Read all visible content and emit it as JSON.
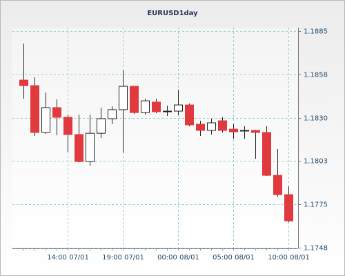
{
  "chart_data": {
    "type": "candlestick",
    "title": "EURUSD1day",
    "categories": [
      null,
      null,
      null,
      null,
      "14:00 07/01",
      null,
      null,
      null,
      null,
      "19:00 07/01",
      null,
      null,
      null,
      null,
      "00:00 08/01",
      null,
      null,
      null,
      null,
      "05:00 08/01",
      null,
      null,
      null,
      null,
      "10:00 08/01"
    ],
    "open": [
      1.1854,
      1.18505,
      1.18209,
      1.18366,
      1.18305,
      1.18196,
      1.18025,
      1.18204,
      1.18296,
      1.18353,
      1.18501,
      1.18335,
      1.18401,
      1.1834,
      1.18344,
      1.18383,
      1.18261,
      1.18222,
      1.18283,
      1.1823,
      1.18222,
      1.18222,
      1.18209,
      1.17938,
      1.17816
    ],
    "high": [
      1.18771,
      1.18558,
      1.18462,
      1.18418,
      1.18322,
      1.18322,
      1.18322,
      1.18366,
      1.18374,
      1.18601,
      1.18501,
      1.18422,
      1.18422,
      1.18379,
      1.18479,
      1.18392,
      1.18283,
      1.18296,
      1.18305,
      1.18261,
      1.18248,
      1.18226,
      1.18248,
      1.18104,
      1.17868
    ],
    "low": [
      1.18422,
      1.18187,
      1.182,
      1.18191,
      1.18086,
      1.1802,
      1.17999,
      1.18174,
      1.18261,
      1.18082,
      1.18326,
      1.18322,
      1.18331,
      1.18313,
      1.18318,
      1.18248,
      1.18187,
      1.18196,
      1.18209,
      1.18169,
      1.18169,
      1.18043,
      1.17934,
      1.17803,
      1.17641
    ],
    "close": [
      1.18505,
      1.18209,
      1.18366,
      1.18305,
      1.18196,
      1.18025,
      1.18204,
      1.18296,
      1.18353,
      1.18501,
      1.18335,
      1.18409,
      1.1834,
      1.18344,
      1.18383,
      1.18257,
      1.18222,
      1.1827,
      1.18222,
      1.18213,
      1.18222,
      1.18209,
      1.17938,
      1.17816,
      1.1765
    ],
    "up_color": "#ffffff",
    "down_color": "#e0393e",
    "ylim": [
      1.17476,
      1.18872
    ],
    "yticks": [
      {
        "value": 1.1748,
        "label": "1.1748"
      },
      {
        "value": 1.17754,
        "label": "1.1775"
      },
      {
        "value": 1.18028,
        "label": "1.1803"
      },
      {
        "value": 1.18302,
        "label": "1.1830"
      },
      {
        "value": 1.18576,
        "label": "1.1858"
      },
      {
        "value": 1.1885,
        "label": "1.1885"
      }
    ],
    "grid": true
  }
}
